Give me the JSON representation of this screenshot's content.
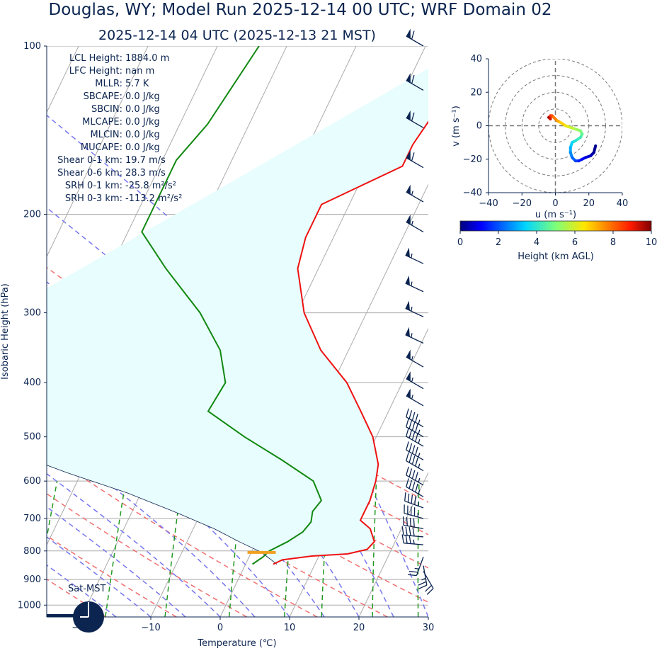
{
  "title": "Douglas, WY; Model Run 2025-12-14 00 UTC; WRF Domain 02",
  "subtitle": "2025-12-14 04 UTC  (2025-12-13 21 MST)",
  "stats": [
    {
      "label": "LCL Height:",
      "value": "1884.0 m"
    },
    {
      "label": "LFC Height:",
      "value": "nan m"
    },
    {
      "label": "MLLR:",
      "value": "5.7 K"
    },
    {
      "label": "SBCAPE:",
      "value": "0.0 J/kg"
    },
    {
      "label": "SBCIN:",
      "value": "0.0 J/kg"
    },
    {
      "label": "MLCAPE:",
      "value": "0.0 J/kg"
    },
    {
      "label": "MLCIN:",
      "value": "0.0 J/kg"
    },
    {
      "label": "MUCAPE:",
      "value": "0.0 J/kg"
    },
    {
      "label": "Shear 0-1 km:",
      "value": "19.7 m/s"
    },
    {
      "label": "Shear 0-6 km:",
      "value": "28.3 m/s"
    },
    {
      "label": "SRH 0-1 km:",
      "value": "-25.8 m²/s²"
    },
    {
      "label": "SRH 0-3 km:",
      "value": "-113.2 m²/s²"
    }
  ],
  "clock_label": "Sat-MST",
  "colors": {
    "temperature": "#ee1111",
    "dewpoint": "#118811",
    "parcel": "#0b2450",
    "isotherm": "#aaaaaa",
    "dry_adiabat": "#f07070",
    "moist_adiabat": "#7777ee",
    "mixing_ratio": "#229922",
    "cape_shade": "#e8fdfd",
    "lcl_marker": "#f0a020",
    "barb": "#0b2450"
  },
  "chart_data": [
    {
      "type": "line",
      "title": "",
      "xlabel": "Temperature (℃)",
      "ylabel": "Isobaric Height (hPa)",
      "x_ticks": [
        "−20",
        "−10",
        "0",
        "10",
        "20",
        "30"
      ],
      "y_ticks": [
        "100",
        "200",
        "300",
        "400",
        "500",
        "600",
        "700",
        "800",
        "900",
        "1000"
      ],
      "xlim": [
        -25,
        30
      ],
      "ylim": [
        1050,
        100
      ],
      "skew": true,
      "series": [
        {
          "key": "temperature",
          "points": [
            [
              4.0,
              845
            ],
            [
              5.0,
              830
            ],
            [
              9.0,
              817
            ],
            [
              14.0,
              810
            ],
            [
              16.5,
              795
            ],
            [
              17.0,
              770
            ],
            [
              15.5,
              730
            ],
            [
              13.5,
              705
            ],
            [
              13.5,
              650
            ],
            [
              13.0,
              600
            ],
            [
              12.2,
              560
            ],
            [
              9.5,
              500
            ],
            [
              6.0,
              450
            ],
            [
              2.0,
              400
            ],
            [
              -4.0,
              350
            ],
            [
              -9.0,
              300
            ],
            [
              -13.0,
              250
            ],
            [
              -14.0,
              220
            ],
            [
              -14.0,
              192
            ],
            [
              -5.0,
              164
            ],
            [
              -5.0,
              150
            ],
            [
              -4.0,
              130
            ],
            [
              -4.0,
              100
            ]
          ]
        },
        {
          "key": "dewpoint",
          "points": [
            [
              1.0,
              845
            ],
            [
              2.0,
              820
            ],
            [
              2.5,
              800
            ],
            [
              4.5,
              770
            ],
            [
              6.0,
              740
            ],
            [
              6.5,
              710
            ],
            [
              6.0,
              680
            ],
            [
              6.5,
              650
            ],
            [
              4.0,
              600
            ],
            [
              -2.0,
              550
            ],
            [
              -9.0,
              500
            ],
            [
              -16.0,
              450
            ],
            [
              -15.5,
              400
            ],
            [
              -18.5,
              350
            ],
            [
              -24.0,
              300
            ],
            [
              -32.0,
              250
            ],
            [
              -38.0,
              215
            ],
            [
              -38.0,
              190
            ],
            [
              -38.0,
              160
            ],
            [
              -36.0,
              138
            ],
            [
              -34.0,
              100
            ]
          ]
        },
        {
          "key": "parcel",
          "points": [
            [
              4.5,
              845
            ],
            [
              1.5,
              805
            ],
            [
              -2.5,
              770
            ],
            [
              -7.0,
              730
            ],
            [
              -14.0,
              680
            ],
            [
              -22.0,
              630
            ],
            [
              -32.0,
              580
            ],
            [
              -42.0,
              530
            ],
            [
              -55.0,
              480
            ],
            [
              -68.0,
              430
            ]
          ]
        }
      ],
      "lcl_pressure_hpa": 805,
      "isotherms_c": [
        -110,
        -100,
        -90,
        -80,
        -70,
        -60,
        -50,
        -40,
        -30,
        -20,
        -10,
        0,
        10,
        20,
        30,
        40
      ],
      "dry_adiabats_c": [
        -50,
        -40,
        -30,
        -20,
        -10,
        0,
        10,
        20,
        30,
        40,
        50,
        60
      ],
      "moist_adiabats_c": [
        -15,
        -10,
        -5,
        0,
        5,
        10,
        15,
        20,
        25,
        30
      ],
      "mixing_ratios_gkg": [
        0.4,
        1,
        2,
        4,
        7,
        10,
        16,
        24
      ],
      "wind_barbs": [
        {
          "p": 100,
          "dir": 300,
          "kt": 60
        },
        {
          "p": 120,
          "dir": 300,
          "kt": 60
        },
        {
          "p": 140,
          "dir": 300,
          "kt": 60
        },
        {
          "p": 165,
          "dir": 300,
          "kt": 60
        },
        {
          "p": 190,
          "dir": 300,
          "kt": 55
        },
        {
          "p": 215,
          "dir": 300,
          "kt": 55
        },
        {
          "p": 245,
          "dir": 295,
          "kt": 55
        },
        {
          "p": 275,
          "dir": 295,
          "kt": 55
        },
        {
          "p": 305,
          "dir": 295,
          "kt": 55
        },
        {
          "p": 340,
          "dir": 295,
          "kt": 55
        },
        {
          "p": 375,
          "dir": 300,
          "kt": 55
        },
        {
          "p": 410,
          "dir": 300,
          "kt": 55
        },
        {
          "p": 440,
          "dir": 300,
          "kt": 55
        },
        {
          "p": 480,
          "dir": 300,
          "kt": 45
        },
        {
          "p": 500,
          "dir": 300,
          "kt": 45
        },
        {
          "p": 520,
          "dir": 300,
          "kt": 45
        },
        {
          "p": 550,
          "dir": 300,
          "kt": 45
        },
        {
          "p": 575,
          "dir": 300,
          "kt": 45
        },
        {
          "p": 610,
          "dir": 300,
          "kt": 45
        },
        {
          "p": 640,
          "dir": 300,
          "kt": 45
        },
        {
          "p": 670,
          "dir": 290,
          "kt": 45
        },
        {
          "p": 700,
          "dir": 285,
          "kt": 45
        },
        {
          "p": 730,
          "dir": 280,
          "kt": 40
        },
        {
          "p": 755,
          "dir": 275,
          "kt": 40
        },
        {
          "p": 780,
          "dir": 275,
          "kt": 35
        },
        {
          "p": 820,
          "dir": 200,
          "kt": 25
        },
        {
          "p": 850,
          "dir": 170,
          "kt": 25
        },
        {
          "p": 870,
          "dir": 150,
          "kt": 20
        }
      ]
    },
    {
      "type": "line",
      "title": "",
      "xlabel": "u (m s⁻¹)",
      "ylabel": "v (m s⁻¹)",
      "x_ticks": [
        "−40",
        "−20",
        "0",
        "20",
        "40"
      ],
      "y_ticks": [
        "40",
        "20",
        "0",
        "−20",
        "−40"
      ],
      "xlim": [
        -40,
        40
      ],
      "ylim": [
        -40,
        40
      ],
      "grid": true,
      "rings": [
        10,
        20,
        30,
        40
      ],
      "series": [
        {
          "name": "hodograph",
          "colored_by": "height_km",
          "points": [
            [
              -4,
              5,
              10.0
            ],
            [
              -3,
              4,
              9.5
            ],
            [
              -3,
              6,
              9.0
            ],
            [
              -2,
              6,
              8.5
            ],
            [
              -1,
              5,
              8.0
            ],
            [
              1,
              3,
              7.5
            ],
            [
              3,
              2,
              7.0
            ],
            [
              6,
              0,
              6.5
            ],
            [
              9,
              -1,
              6.0
            ],
            [
              12,
              -2,
              5.6
            ],
            [
              15,
              -3,
              5.2
            ],
            [
              16,
              -5,
              4.8
            ],
            [
              15,
              -7,
              4.4
            ],
            [
              12,
              -9,
              4.0
            ],
            [
              10,
              -10,
              3.6
            ],
            [
              9,
              -13,
              3.2
            ],
            [
              9,
              -16,
              2.8
            ],
            [
              10,
              -19,
              2.4
            ],
            [
              12,
              -21,
              2.0
            ],
            [
              14,
              -21,
              1.6
            ],
            [
              16,
              -20,
              1.2
            ],
            [
              18,
              -19,
              0.9
            ],
            [
              21,
              -18,
              0.6
            ],
            [
              23,
              -16,
              0.3
            ],
            [
              24,
              -12,
              0.0
            ]
          ]
        }
      ]
    },
    {
      "type": "heatmap",
      "title": "",
      "xlabel": "Height (km AGL)",
      "x_ticks": [
        "0",
        "2",
        "4",
        "6",
        "8",
        "10"
      ],
      "xlim": [
        0,
        10
      ],
      "colormap": "jet"
    }
  ]
}
